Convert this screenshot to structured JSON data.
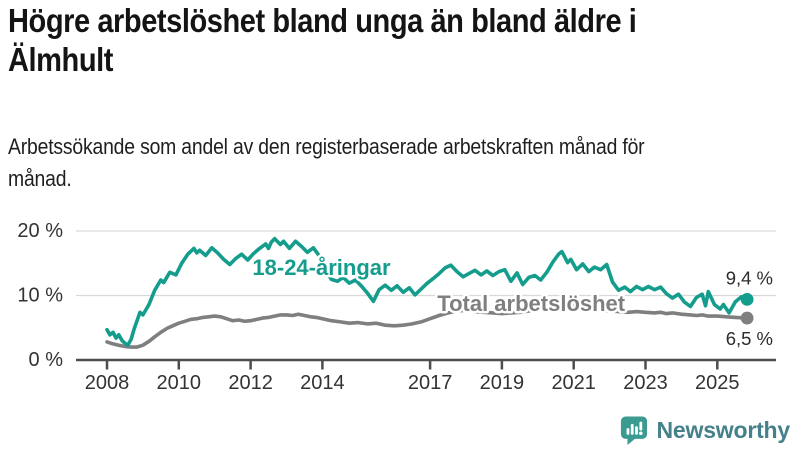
{
  "header": {
    "title": "Högre arbetslöshet bland unga än bland äldre i Älmhult",
    "subtitle": "Arbetssökande som andel av den registerbaserade arbetskraften månad för månad."
  },
  "footer": {
    "brand": "Newsworthy",
    "logo_icon": "speech-bubble-bar-chart-exclamation"
  },
  "colors": {
    "youth_line": "#149c8c",
    "total_line": "#7f7f7f",
    "axis": "#4d4d4d",
    "grid": "#d9d9d9",
    "tick_text": "#333333",
    "value_text": "#2b2b2b",
    "title_text": "#141414",
    "logo_icon": "#3c9b91",
    "logo_text": "#45818a",
    "background": "#ffffff"
  },
  "chart_data": {
    "type": "line",
    "title": "",
    "xlabel": "",
    "ylabel": "",
    "x_unit": "year, monthly observations",
    "y_unit": "percent of labour force",
    "xlim": [
      2007.85,
      2026.2
    ],
    "ylim": [
      0,
      20
    ],
    "grid": "horizontal",
    "legend_position": "inline-on-lines",
    "yticks": [
      {
        "value": 0,
        "label": "0 %"
      },
      {
        "value": 10,
        "label": "10 %"
      },
      {
        "value": 20,
        "label": "20 %"
      }
    ],
    "xticks": [
      {
        "value": 2008,
        "label": "2008"
      },
      {
        "value": 2010,
        "label": "2010"
      },
      {
        "value": 2012,
        "label": "2012"
      },
      {
        "value": 2014,
        "label": "2014"
      },
      {
        "value": 2017,
        "label": "2017"
      },
      {
        "value": 2019,
        "label": "2019"
      },
      {
        "value": 2021,
        "label": "2021"
      },
      {
        "value": 2023,
        "label": "2023"
      },
      {
        "value": 2025,
        "label": "2025"
      }
    ],
    "series": [
      {
        "name": "Total arbetslöshet",
        "color_key": "total_line",
        "end_label": "6,5 %",
        "end_value": 6.5,
        "label_anchor": {
          "x_year": 2017.2,
          "y_pct": 7.6
        },
        "points": [
          [
            2008.0,
            2.8
          ],
          [
            2008.17,
            2.5
          ],
          [
            2008.33,
            2.3
          ],
          [
            2008.5,
            2.1
          ],
          [
            2008.67,
            2.0
          ],
          [
            2008.83,
            2.0
          ],
          [
            2009.0,
            2.3
          ],
          [
            2009.17,
            2.9
          ],
          [
            2009.33,
            3.6
          ],
          [
            2009.5,
            4.3
          ],
          [
            2009.67,
            4.9
          ],
          [
            2009.83,
            5.3
          ],
          [
            2010.0,
            5.7
          ],
          [
            2010.17,
            6.0
          ],
          [
            2010.33,
            6.3
          ],
          [
            2010.5,
            6.4
          ],
          [
            2010.67,
            6.6
          ],
          [
            2010.83,
            6.7
          ],
          [
            2011.0,
            6.8
          ],
          [
            2011.17,
            6.7
          ],
          [
            2011.33,
            6.4
          ],
          [
            2011.5,
            6.1
          ],
          [
            2011.67,
            6.2
          ],
          [
            2011.83,
            6.0
          ],
          [
            2012.0,
            6.1
          ],
          [
            2012.17,
            6.3
          ],
          [
            2012.33,
            6.5
          ],
          [
            2012.5,
            6.6
          ],
          [
            2012.67,
            6.8
          ],
          [
            2012.83,
            7.0
          ],
          [
            2013.0,
            7.0
          ],
          [
            2013.17,
            6.9
          ],
          [
            2013.33,
            7.1
          ],
          [
            2013.5,
            6.9
          ],
          [
            2013.67,
            6.7
          ],
          [
            2013.83,
            6.6
          ],
          [
            2014.0,
            6.4
          ],
          [
            2014.25,
            6.1
          ],
          [
            2014.5,
            5.9
          ],
          [
            2014.75,
            5.7
          ],
          [
            2015.0,
            5.8
          ],
          [
            2015.25,
            5.6
          ],
          [
            2015.5,
            5.7
          ],
          [
            2015.75,
            5.4
          ],
          [
            2016.0,
            5.3
          ],
          [
            2016.25,
            5.4
          ],
          [
            2016.5,
            5.6
          ],
          [
            2016.75,
            5.9
          ],
          [
            2017.0,
            6.4
          ],
          [
            2017.25,
            6.9
          ],
          [
            2017.5,
            7.3
          ],
          [
            2017.75,
            7.6
          ],
          [
            2018.0,
            7.7
          ],
          [
            2018.25,
            7.5
          ],
          [
            2018.5,
            7.4
          ],
          [
            2018.75,
            7.3
          ],
          [
            2019.0,
            7.2
          ],
          [
            2019.25,
            7.3
          ],
          [
            2019.5,
            7.4
          ],
          [
            2019.75,
            7.6
          ],
          [
            2020.0,
            7.8
          ],
          [
            2020.25,
            8.4
          ],
          [
            2020.5,
            8.8
          ],
          [
            2020.75,
            8.7
          ],
          [
            2021.0,
            8.5
          ],
          [
            2021.25,
            8.3
          ],
          [
            2021.5,
            8.0
          ],
          [
            2021.75,
            7.8
          ],
          [
            2022.0,
            7.6
          ],
          [
            2022.25,
            7.5
          ],
          [
            2022.5,
            7.4
          ],
          [
            2022.75,
            7.5
          ],
          [
            2023.0,
            7.4
          ],
          [
            2023.25,
            7.3
          ],
          [
            2023.42,
            7.4
          ],
          [
            2023.58,
            7.2
          ],
          [
            2023.75,
            7.3
          ],
          [
            2024.0,
            7.1
          ],
          [
            2024.25,
            7.0
          ],
          [
            2024.42,
            6.9
          ],
          [
            2024.58,
            7.0
          ],
          [
            2024.75,
            6.8
          ],
          [
            2025.0,
            6.8
          ],
          [
            2025.25,
            6.7
          ],
          [
            2025.5,
            6.6
          ],
          [
            2025.83,
            6.5
          ]
        ]
      },
      {
        "name": "18-24-åringar",
        "color_key": "youth_line",
        "end_label": "9,4 %",
        "end_value": 9.4,
        "label_anchor": {
          "x_year": 2012.05,
          "y_pct": 13.2
        },
        "points": [
          [
            2008.0,
            4.7
          ],
          [
            2008.08,
            3.9
          ],
          [
            2008.17,
            4.3
          ],
          [
            2008.25,
            3.4
          ],
          [
            2008.33,
            3.9
          ],
          [
            2008.42,
            3.0
          ],
          [
            2008.5,
            2.6
          ],
          [
            2008.58,
            2.3
          ],
          [
            2008.67,
            3.2
          ],
          [
            2008.75,
            4.7
          ],
          [
            2008.83,
            6.0
          ],
          [
            2008.92,
            7.4
          ],
          [
            2009.0,
            7.0
          ],
          [
            2009.17,
            8.6
          ],
          [
            2009.33,
            10.8
          ],
          [
            2009.5,
            12.4
          ],
          [
            2009.58,
            12.0
          ],
          [
            2009.75,
            13.6
          ],
          [
            2009.92,
            13.2
          ],
          [
            2010.08,
            15.0
          ],
          [
            2010.25,
            16.4
          ],
          [
            2010.42,
            17.3
          ],
          [
            2010.5,
            16.6
          ],
          [
            2010.58,
            17.0
          ],
          [
            2010.75,
            16.2
          ],
          [
            2010.92,
            17.4
          ],
          [
            2011.08,
            16.6
          ],
          [
            2011.25,
            15.6
          ],
          [
            2011.42,
            14.8
          ],
          [
            2011.58,
            15.7
          ],
          [
            2011.75,
            16.4
          ],
          [
            2011.92,
            15.5
          ],
          [
            2012.08,
            16.5
          ],
          [
            2012.25,
            17.3
          ],
          [
            2012.42,
            18.0
          ],
          [
            2012.5,
            17.3
          ],
          [
            2012.58,
            18.3
          ],
          [
            2012.67,
            18.8
          ],
          [
            2012.83,
            17.9
          ],
          [
            2012.92,
            18.4
          ],
          [
            2013.08,
            17.3
          ],
          [
            2013.25,
            18.4
          ],
          [
            2013.42,
            17.6
          ],
          [
            2013.58,
            16.7
          ],
          [
            2013.75,
            17.4
          ],
          [
            2013.92,
            16.1
          ],
          [
            2014.08,
            13.9
          ],
          [
            2014.25,
            12.5
          ],
          [
            2014.42,
            12.2
          ],
          [
            2014.58,
            12.8
          ],
          [
            2014.75,
            11.9
          ],
          [
            2014.92,
            12.4
          ],
          [
            2015.08,
            11.5
          ],
          [
            2015.25,
            10.4
          ],
          [
            2015.42,
            9.1
          ],
          [
            2015.58,
            10.9
          ],
          [
            2015.75,
            11.6
          ],
          [
            2015.92,
            10.8
          ],
          [
            2016.08,
            11.5
          ],
          [
            2016.25,
            10.5
          ],
          [
            2016.42,
            11.2
          ],
          [
            2016.58,
            10.1
          ],
          [
            2016.75,
            11.0
          ],
          [
            2016.92,
            11.9
          ],
          [
            2017.08,
            12.6
          ],
          [
            2017.25,
            13.4
          ],
          [
            2017.42,
            14.3
          ],
          [
            2017.58,
            14.7
          ],
          [
            2017.75,
            13.7
          ],
          [
            2017.92,
            12.9
          ],
          [
            2018.08,
            13.4
          ],
          [
            2018.25,
            13.9
          ],
          [
            2018.42,
            13.2
          ],
          [
            2018.58,
            13.8
          ],
          [
            2018.75,
            13.1
          ],
          [
            2018.92,
            13.7
          ],
          [
            2019.08,
            14.0
          ],
          [
            2019.25,
            12.2
          ],
          [
            2019.42,
            13.5
          ],
          [
            2019.58,
            11.7
          ],
          [
            2019.75,
            12.8
          ],
          [
            2019.92,
            13.1
          ],
          [
            2020.08,
            12.4
          ],
          [
            2020.25,
            13.6
          ],
          [
            2020.42,
            15.2
          ],
          [
            2020.58,
            16.4
          ],
          [
            2020.67,
            16.8
          ],
          [
            2020.83,
            15.1
          ],
          [
            2020.92,
            15.6
          ],
          [
            2021.08,
            14.0
          ],
          [
            2021.25,
            14.9
          ],
          [
            2021.42,
            13.7
          ],
          [
            2021.58,
            14.4
          ],
          [
            2021.75,
            14.0
          ],
          [
            2021.92,
            14.8
          ],
          [
            2022.08,
            12.1
          ],
          [
            2022.25,
            10.8
          ],
          [
            2022.42,
            11.3
          ],
          [
            2022.58,
            10.6
          ],
          [
            2022.75,
            11.4
          ],
          [
            2022.92,
            10.9
          ],
          [
            2023.08,
            11.4
          ],
          [
            2023.25,
            10.9
          ],
          [
            2023.42,
            11.3
          ],
          [
            2023.58,
            10.3
          ],
          [
            2023.75,
            9.6
          ],
          [
            2023.92,
            10.2
          ],
          [
            2024.08,
            9.0
          ],
          [
            2024.25,
            8.3
          ],
          [
            2024.42,
            9.7
          ],
          [
            2024.58,
            10.2
          ],
          [
            2024.67,
            8.4
          ],
          [
            2024.75,
            10.6
          ],
          [
            2024.92,
            8.6
          ],
          [
            2025.08,
            7.9
          ],
          [
            2025.17,
            8.6
          ],
          [
            2025.33,
            7.3
          ],
          [
            2025.5,
            9.0
          ],
          [
            2025.67,
            9.8
          ],
          [
            2025.83,
            9.4
          ]
        ]
      }
    ]
  }
}
